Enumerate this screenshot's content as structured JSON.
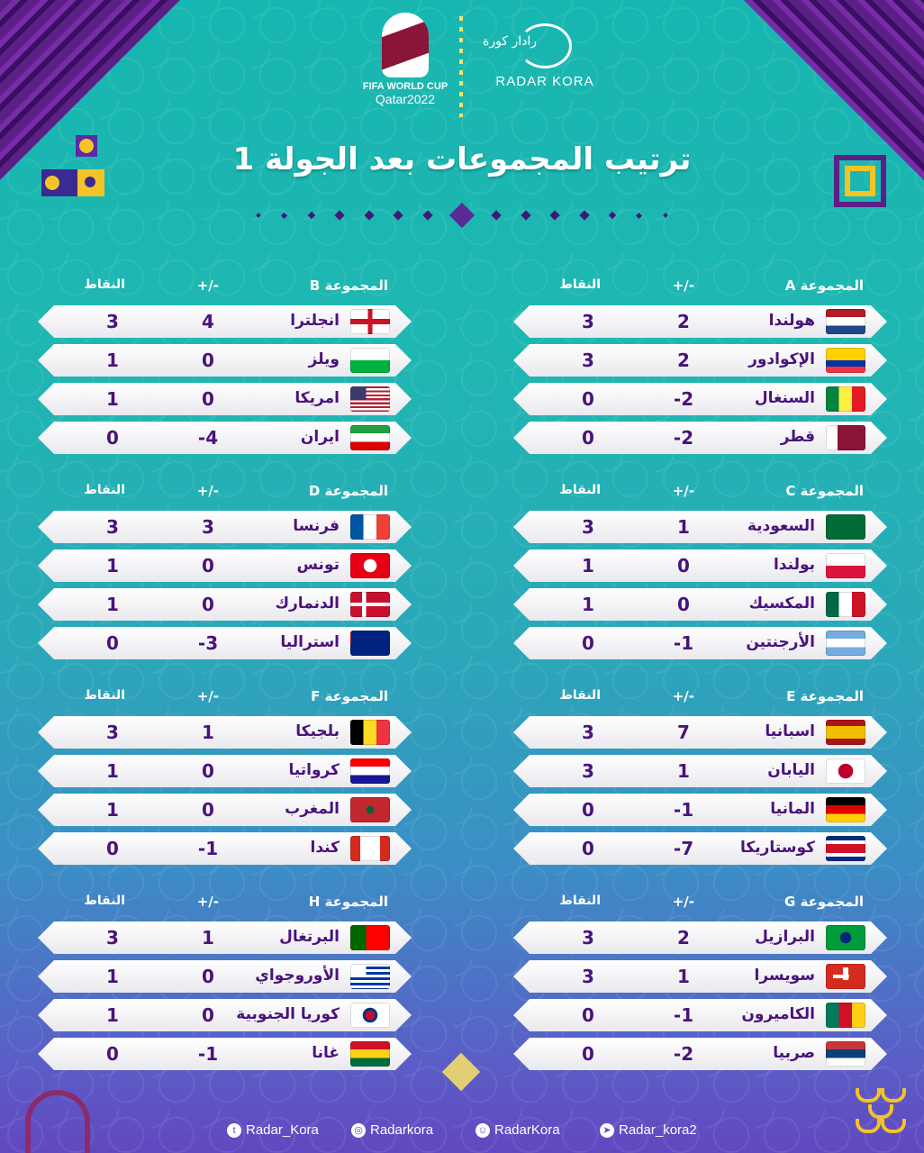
{
  "header": {
    "wc_line1": "FIFA WORLD CUP",
    "wc_line2": "Qatar2022",
    "brand_ar": "رادار كورة",
    "brand_en": "RADAR KORA"
  },
  "title": "ترتيب المجموعات بعد الجولة 1",
  "col_labels": {
    "diff": "+/-",
    "points": "النقاط"
  },
  "groups": [
    {
      "name": "المجموعة A",
      "teams": [
        {
          "name": "هولندا",
          "diff": "2",
          "pts": "3",
          "flag": "netherlands-flag"
        },
        {
          "name": "الإكوادور",
          "diff": "2",
          "pts": "3",
          "flag": "ecuador-flag"
        },
        {
          "name": "السنغال",
          "diff": "-2",
          "pts": "0",
          "flag": "senegal-flag"
        },
        {
          "name": "قطر",
          "diff": "-2",
          "pts": "0",
          "flag": "qatar-flag"
        }
      ]
    },
    {
      "name": "المجموعة B",
      "teams": [
        {
          "name": "انجلترا",
          "diff": "4",
          "pts": "3",
          "flag": "england-flag"
        },
        {
          "name": "ويلز",
          "diff": "0",
          "pts": "1",
          "flag": "wales-flag"
        },
        {
          "name": "امريكا",
          "diff": "0",
          "pts": "1",
          "flag": "usa-flag"
        },
        {
          "name": "ايران",
          "diff": "-4",
          "pts": "0",
          "flag": "iran-flag"
        }
      ]
    },
    {
      "name": "المجموعة C",
      "teams": [
        {
          "name": "السعودية",
          "diff": "1",
          "pts": "3",
          "flag": "saudi-flag"
        },
        {
          "name": "بولندا",
          "diff": "0",
          "pts": "1",
          "flag": "poland-flag"
        },
        {
          "name": "المكسيك",
          "diff": "0",
          "pts": "1",
          "flag": "mexico-flag"
        },
        {
          "name": "الأرجنتين",
          "diff": "-1",
          "pts": "0",
          "flag": "argentina-flag"
        }
      ]
    },
    {
      "name": "المجموعة D",
      "teams": [
        {
          "name": "فرنسا",
          "diff": "3",
          "pts": "3",
          "flag": "france-flag"
        },
        {
          "name": "تونس",
          "diff": "0",
          "pts": "1",
          "flag": "tunisia-flag"
        },
        {
          "name": "الدنمارك",
          "diff": "0",
          "pts": "1",
          "flag": "denmark-flag"
        },
        {
          "name": "استراليا",
          "diff": "-3",
          "pts": "0",
          "flag": "australia-flag"
        }
      ]
    },
    {
      "name": "المجموعة E",
      "teams": [
        {
          "name": "اسبانيا",
          "diff": "7",
          "pts": "3",
          "flag": "spain-flag"
        },
        {
          "name": "اليابان",
          "diff": "1",
          "pts": "3",
          "flag": "japan-flag"
        },
        {
          "name": "المانيا",
          "diff": "-1",
          "pts": "0",
          "flag": "germany-flag"
        },
        {
          "name": "كوستاريكا",
          "diff": "-7",
          "pts": "0",
          "flag": "costarica-flag"
        }
      ]
    },
    {
      "name": "المجموعة F",
      "teams": [
        {
          "name": "بلجيكا",
          "diff": "1",
          "pts": "3",
          "flag": "belgium-flag"
        },
        {
          "name": "كرواتيا",
          "diff": "0",
          "pts": "1",
          "flag": "croatia-flag"
        },
        {
          "name": "المغرب",
          "diff": "0",
          "pts": "1",
          "flag": "morocco-flag"
        },
        {
          "name": "كندا",
          "diff": "-1",
          "pts": "0",
          "flag": "canada-flag"
        }
      ]
    },
    {
      "name": "المجموعة G",
      "teams": [
        {
          "name": "البرازيل",
          "diff": "2",
          "pts": "3",
          "flag": "brazil-flag"
        },
        {
          "name": "سويسرا",
          "diff": "1",
          "pts": "3",
          "flag": "switzerland-flag"
        },
        {
          "name": "الكاميرون",
          "diff": "-1",
          "pts": "0",
          "flag": "cameroon-flag"
        },
        {
          "name": "صربيا",
          "diff": "-2",
          "pts": "0",
          "flag": "serbia-flag"
        }
      ]
    },
    {
      "name": "المجموعة H",
      "teams": [
        {
          "name": "البرتغال",
          "diff": "1",
          "pts": "3",
          "flag": "portugal-flag"
        },
        {
          "name": "الأوروجواي",
          "diff": "0",
          "pts": "1",
          "flag": "uruguay-flag"
        },
        {
          "name": "كوريا الجنوبية",
          "diff": "0",
          "pts": "1",
          "flag": "southkorea-flag"
        },
        {
          "name": "غانا",
          "diff": "-1",
          "pts": "0",
          "flag": "ghana-flag"
        }
      ]
    }
  ],
  "footer": {
    "twitter": "Radar_Kora",
    "instagram": "Radarkora",
    "snapchat": "RadarKora",
    "telegram": "Radar_kora2"
  },
  "colors": {
    "text_purple": "#4a137a",
    "accent_gold": "#f4c326",
    "corner_purple": "#5b1f86"
  }
}
